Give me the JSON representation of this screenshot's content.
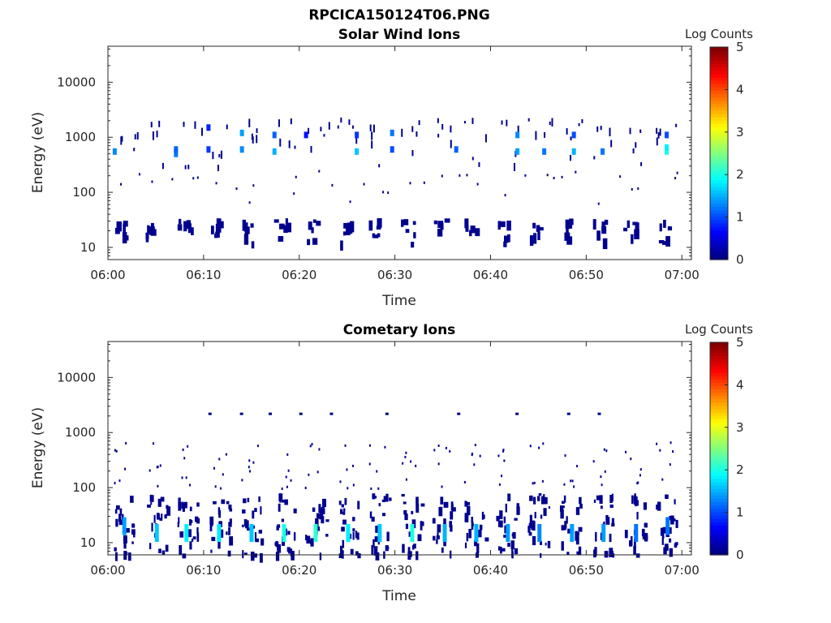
{
  "figure_title": "RPCICA150124T06.PNG",
  "chart_data": [
    {
      "type": "heatmap",
      "title": "Solar Wind Ions",
      "xlabel": "Time",
      "ylabel": "Energy (eV)",
      "x_ticks": [
        "06:00",
        "06:10",
        "06:20",
        "06:30",
        "06:40",
        "06:50",
        "07:00"
      ],
      "x_range": [
        "06:00",
        "07:00"
      ],
      "y_scale": "log",
      "y_ticks": [
        "10",
        "100",
        "1000",
        "10000"
      ],
      "y_range_eV": [
        6,
        45000
      ],
      "colorbar": {
        "label": "Log Counts",
        "range": [
          0,
          5
        ],
        "ticks": [
          "0",
          "1",
          "2",
          "3",
          "4",
          "5"
        ],
        "colormap": "jet"
      },
      "scan_period_min": 3.33,
      "cells": [
        {
          "t": 6.9,
          "e": 500,
          "v": 1.2
        },
        {
          "t": 6.9,
          "e": 600,
          "v": 1.1
        },
        {
          "t": 10.3,
          "e": 600,
          "v": 0.9
        },
        {
          "t": 10.3,
          "e": 1500,
          "v": 0.8
        },
        {
          "t": 13.8,
          "e": 600,
          "v": 1.3
        },
        {
          "t": 13.8,
          "e": 1200,
          "v": 1.4
        },
        {
          "t": 17.2,
          "e": 550,
          "v": 1.5
        },
        {
          "t": 17.2,
          "e": 1100,
          "v": 1.1
        },
        {
          "t": 20.5,
          "e": 1100,
          "v": 0.7
        },
        {
          "t": 25.8,
          "e": 550,
          "v": 1.6
        },
        {
          "t": 25.8,
          "e": 1100,
          "v": 0.9
        },
        {
          "t": 29.5,
          "e": 1200,
          "v": 1.2
        },
        {
          "t": 29.5,
          "e": 600,
          "v": 1.0
        },
        {
          "t": 36.2,
          "e": 600,
          "v": 1.1
        },
        {
          "t": 42.6,
          "e": 550,
          "v": 1.4
        },
        {
          "t": 42.6,
          "e": 1100,
          "v": 1.3
        },
        {
          "t": 45.4,
          "e": 550,
          "v": 1.2
        },
        {
          "t": 48.5,
          "e": 550,
          "v": 1.5
        },
        {
          "t": 48.5,
          "e": 1100,
          "v": 1.0
        },
        {
          "t": 51.5,
          "e": 550,
          "v": 1.2
        },
        {
          "t": 58.2,
          "e": 550,
          "v": 2.0
        },
        {
          "t": 58.2,
          "e": 650,
          "v": 1.8
        },
        {
          "t": 58.2,
          "e": 1100,
          "v": 1.0
        },
        {
          "t": 0.5,
          "e": 550,
          "v": 1.3
        }
      ]
    },
    {
      "type": "heatmap",
      "title": "Cometary Ions",
      "xlabel": "Time",
      "ylabel": "Energy (eV)",
      "x_ticks": [
        "06:00",
        "06:10",
        "06:20",
        "06:30",
        "06:40",
        "06:50",
        "07:00"
      ],
      "x_range": [
        "06:00",
        "07:00"
      ],
      "y_scale": "log",
      "y_ticks": [
        "10",
        "100",
        "1000",
        "10000"
      ],
      "y_range_eV": [
        6,
        45000
      ],
      "colorbar": {
        "label": "Log Counts",
        "range": [
          0,
          5
        ],
        "ticks": [
          "0",
          "1",
          "2",
          "3",
          "4",
          "5"
        ],
        "colormap": "jet"
      },
      "scan_period_min": 3.33,
      "cells": [
        {
          "t": 1.5,
          "e": 20,
          "v": 1.4
        },
        {
          "t": 4.9,
          "e": 15,
          "v": 1.6
        },
        {
          "t": 8.0,
          "e": 15,
          "v": 1.8
        },
        {
          "t": 11.4,
          "e": 15,
          "v": 1.8
        },
        {
          "t": 14.8,
          "e": 15,
          "v": 1.6
        },
        {
          "t": 18.2,
          "e": 15,
          "v": 2.0
        },
        {
          "t": 21.5,
          "e": 15,
          "v": 2.1
        },
        {
          "t": 24.9,
          "e": 15,
          "v": 1.8
        },
        {
          "t": 28.2,
          "e": 15,
          "v": 1.6
        },
        {
          "t": 31.6,
          "e": 15,
          "v": 2.0
        },
        {
          "t": 35.0,
          "e": 15,
          "v": 1.5
        },
        {
          "t": 38.3,
          "e": 15,
          "v": 1.5
        },
        {
          "t": 41.6,
          "e": 15,
          "v": 1.4
        },
        {
          "t": 44.9,
          "e": 15,
          "v": 1.3
        },
        {
          "t": 48.3,
          "e": 15,
          "v": 1.4
        },
        {
          "t": 51.6,
          "e": 15,
          "v": 1.4
        },
        {
          "t": 55.0,
          "e": 15,
          "v": 1.2
        },
        {
          "t": 58.3,
          "e": 20,
          "v": 1.2
        }
      ]
    }
  ]
}
